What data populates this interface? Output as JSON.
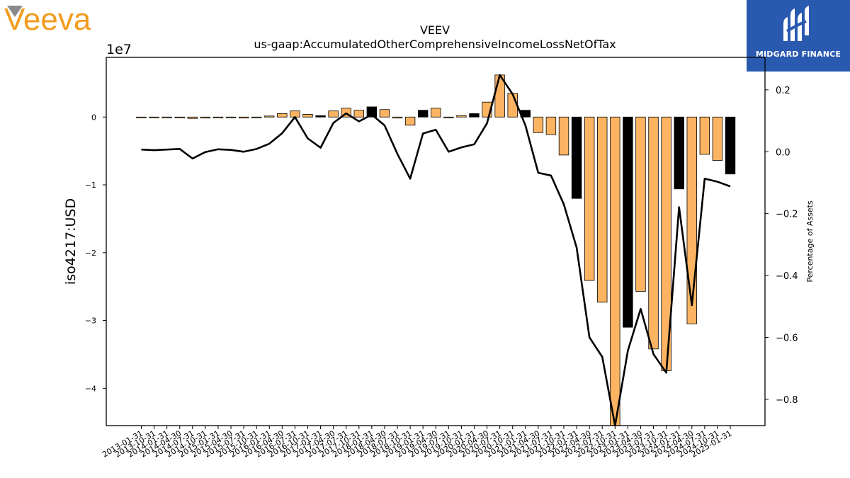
{
  "brand": {
    "left_logo_text": "Veeva",
    "right_logo_text": "MIDGARD FINANCE",
    "left_logo_color": "#f29b1d",
    "right_logo_bg": "#2a5ab0"
  },
  "chart_data": {
    "type": "bar",
    "title": "VEEV",
    "subtitle": "us-gaap:AccumulatedOtherComprehensiveIncomeLossNetOfTax",
    "ylabel": "iso4217:USD",
    "y_offset_label": "1e7",
    "y2label": "Percentage of Assets",
    "ylim": [
      -45500000,
      8800000
    ],
    "y2lim": [
      -0.885,
      0.305
    ],
    "yticks": [
      0,
      -10000000,
      -20000000,
      -30000000,
      -40000000
    ],
    "ytick_labels": [
      "0",
      "−1",
      "−2",
      "−3",
      "−4"
    ],
    "y2ticks": [
      0.2,
      0.0,
      -0.2,
      -0.4,
      -0.6,
      -0.8
    ],
    "y2tick_labels": [
      "0.2",
      "0.0",
      "−0.2",
      "−0.4",
      "−0.6",
      "−0.8"
    ],
    "grid": false,
    "colors": {
      "bar_default": "#fdb462",
      "bar_highlight": "#000000",
      "line": "#000000"
    },
    "categories": [
      "2013-01-31",
      "2013-10-31",
      "2014-01-31",
      "2014-04-30",
      "2014-07-31",
      "2014-10-31",
      "2015-01-31",
      "2015-04-30",
      "2015-07-31",
      "2015-10-31",
      "2016-01-31",
      "2016-04-30",
      "2016-07-31",
      "2016-10-31",
      "2017-01-31",
      "2017-04-30",
      "2017-07-31",
      "2017-10-31",
      "2018-01-31",
      "2018-04-30",
      "2018-07-31",
      "2018-10-31",
      "2019-01-31",
      "2019-04-30",
      "2019-07-31",
      "2019-10-31",
      "2020-01-31",
      "2020-04-30",
      "2020-07-31",
      "2020-10-31",
      "2021-01-31",
      "2021-04-30",
      "2021-07-31",
      "2021-10-31",
      "2022-01-31",
      "2022-04-30",
      "2022-07-31",
      "2022-10-31",
      "2023-01-31",
      "2023-04-30",
      "2023-07-31",
      "2023-10-31",
      "2024-01-31",
      "2024-04-30",
      "2024-07-31",
      "2024-10-31",
      "2025-01-31"
    ],
    "xtick_labels": [
      "2013-01-31",
      "2013-10-31",
      "2014-01-31",
      "2014-04-30",
      "2014-07-31",
      "2014-10-31",
      "2015-01-31",
      "2015-04-30",
      "2015-07-31",
      "2015-10-31",
      "2016-01-31",
      "2016-04-30",
      "2016-07-31",
      "2016-10-31",
      "2017-01-31",
      "2017-04-30",
      "2017-07-31",
      "2017-10-31",
      "2018-01-31",
      "2018-04-30",
      "2018-07-31",
      "2018-10-31",
      "2019-01-31",
      "2019-04-30",
      "2019-07-31",
      "2019-10-31",
      "2020-01-31",
      "2020-04-30",
      "2020-07-31",
      "2020-10-31",
      "2021-01-31",
      "2021-04-30",
      "2021-07-31",
      "2021-10-31",
      "2022-01-31",
      "2022-04-30",
      "2022-07-31",
      "2022-10-31",
      "2023-01-31",
      "2023-04-30",
      "2023-07-31",
      "2023-10-31",
      "2024-01-31",
      "2024-04-30",
      "2024-07-31",
      "2024-10-31",
      "2025-01-31"
    ],
    "series": [
      {
        "type": "bar",
        "axis": "left",
        "values": [
          -100000,
          -100000,
          -100000,
          -100000,
          -200000,
          -150000,
          -100000,
          -100000,
          -150000,
          -100000,
          150000,
          500000,
          900000,
          400000,
          200000,
          900000,
          1300000,
          1000000,
          1500000,
          1100000,
          -150000,
          -1200000,
          1000000,
          1300000,
          -50000,
          200000,
          500000,
          2200000,
          6200000,
          3500000,
          1000000,
          -2300000,
          -2600000,
          -5600000,
          -12000000,
          -24100000,
          -27300000,
          -45500000,
          -31000000,
          -25700000,
          -34200000,
          -37400000,
          -10600000,
          -30500000,
          -5500000,
          -6400000,
          -8400000
        ],
        "highlight": [
          false,
          false,
          false,
          false,
          false,
          false,
          false,
          false,
          false,
          false,
          false,
          false,
          false,
          false,
          true,
          false,
          false,
          false,
          true,
          false,
          false,
          false,
          true,
          false,
          false,
          false,
          true,
          false,
          false,
          false,
          true,
          false,
          false,
          false,
          true,
          false,
          false,
          false,
          true,
          false,
          false,
          false,
          true,
          false,
          false,
          false,
          true
        ]
      },
      {
        "type": "line",
        "axis": "right",
        "values": [
          0.007,
          0.005,
          0.007,
          0.009,
          -0.022,
          -0.001,
          0.008,
          0.006,
          0.0,
          0.009,
          0.026,
          0.06,
          0.112,
          0.043,
          0.013,
          0.093,
          0.124,
          0.098,
          0.12,
          0.085,
          -0.007,
          -0.087,
          0.059,
          0.071,
          0.0,
          0.014,
          0.024,
          0.092,
          0.248,
          0.186,
          0.085,
          -0.068,
          -0.077,
          -0.17,
          -0.31,
          -0.6,
          -0.663,
          -0.885,
          -0.643,
          -0.508,
          -0.654,
          -0.714,
          -0.179,
          -0.496,
          -0.087,
          -0.097,
          -0.112
        ]
      }
    ]
  }
}
